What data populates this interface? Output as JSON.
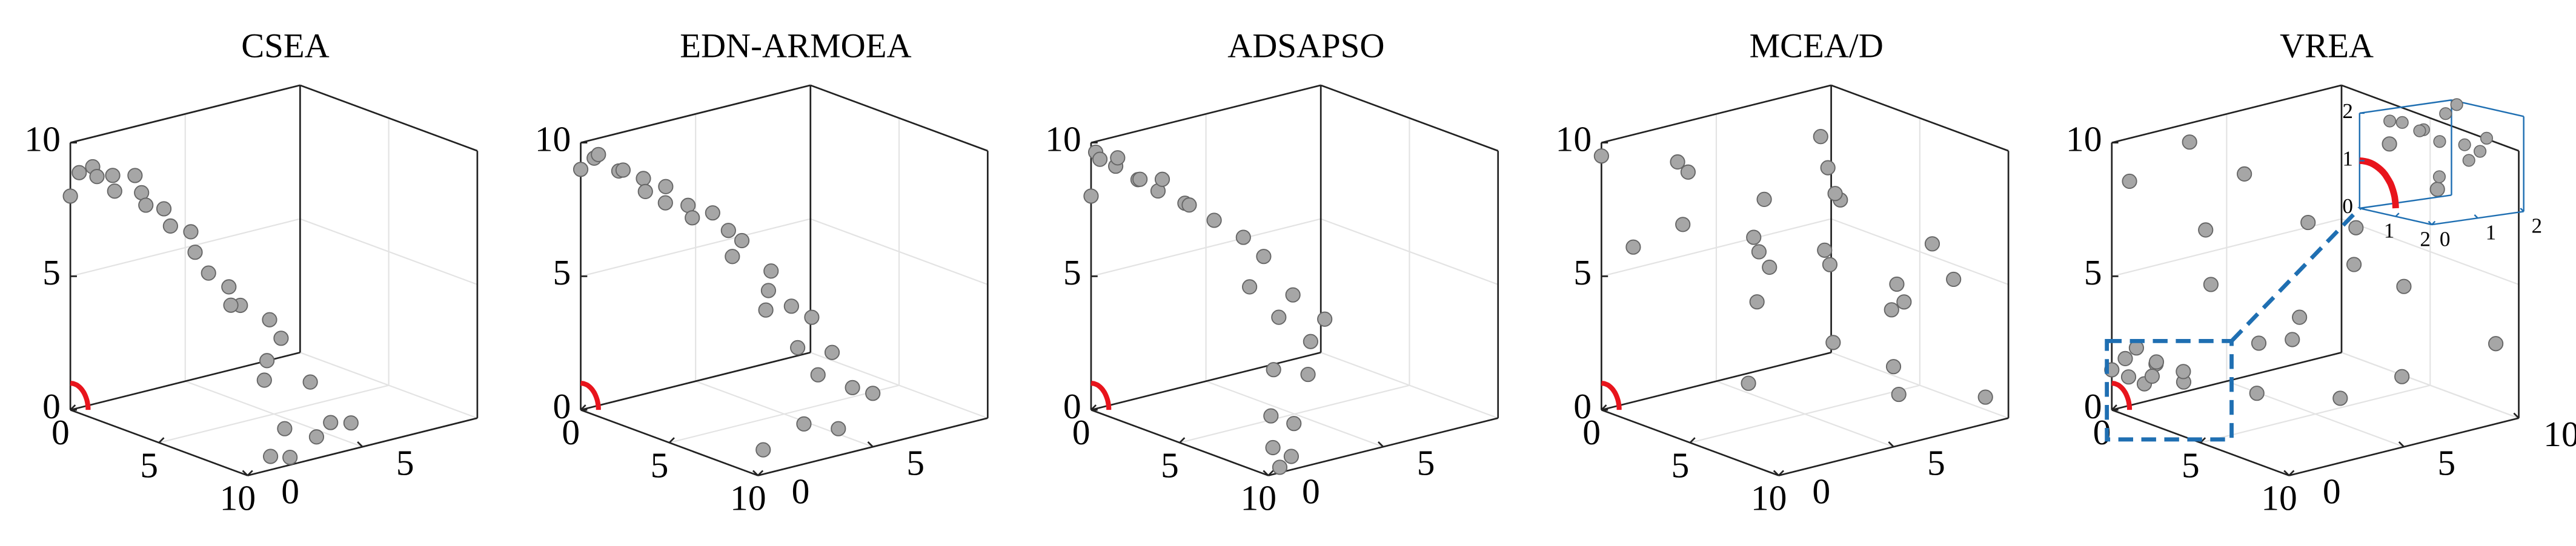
{
  "chart_data": [
    {
      "type": "scatter3d",
      "title": "CSEA",
      "color": "#a6a6a6",
      "xlim": [
        0,
        10
      ],
      "ylim": [
        0,
        10
      ],
      "zlim": [
        0,
        10
      ],
      "xticks": [
        0,
        5,
        10
      ],
      "yticks": [
        0,
        5
      ],
      "zticks": [
        0,
        5,
        10
      ],
      "grid": true,
      "x": [
        0,
        0.5,
        1,
        1.5,
        2,
        2.5,
        3,
        3.5,
        4,
        4.5,
        5,
        5.5,
        6,
        6.5,
        7,
        7,
        7.5,
        8,
        8,
        8.5,
        9,
        9,
        9.5,
        9.5,
        10,
        10,
        10,
        9.8
      ],
      "y": [
        0,
        0,
        0.2,
        0,
        0.3,
        0,
        0.5,
        0.4,
        0.2,
        0.6,
        0.5,
        1,
        0.8,
        1,
        1.5,
        2,
        1.2,
        2.5,
        3,
        2,
        1.5,
        3.5,
        2,
        4,
        1,
        3,
        4.5,
        2
      ],
      "z": [
        8,
        9,
        9.3,
        9.1,
        9.2,
        8.8,
        9.4,
        8.9,
        8.6,
        8.5,
        8,
        7.8,
        7.2,
        6.5,
        6,
        5.2,
        5.5,
        4.8,
        4,
        3.5,
        3,
        2.5,
        1.2,
        1,
        0.5,
        0.8,
        1,
        0.2
      ]
    },
    {
      "type": "scatter3d",
      "title": "EDN-ARMOEA",
      "color": "#a6a6a6",
      "xlim": [
        0,
        10
      ],
      "ylim": [
        0,
        10
      ],
      "zlim": [
        0,
        10
      ],
      "xticks": [
        0,
        5,
        10
      ],
      "yticks": [
        0,
        5
      ],
      "zticks": [
        0,
        5,
        10
      ],
      "grid": true,
      "x": [
        0,
        0.5,
        1,
        1.5,
        2,
        2.5,
        3,
        3.5,
        4,
        4.5,
        5,
        5.5,
        6,
        6.5,
        7,
        7.5,
        8,
        8,
        8.5,
        9,
        9,
        9.5,
        9.5,
        10,
        10,
        10,
        9,
        8.5
      ],
      "y": [
        0,
        0.2,
        0,
        0.5,
        0.3,
        0.8,
        0.5,
        1,
        0.6,
        1.2,
        1,
        1.5,
        1.8,
        2,
        1.2,
        2.5,
        2,
        3,
        3.5,
        2.5,
        4,
        3,
        4.5,
        2,
        3.5,
        5,
        1,
        1.5
      ],
      "z": [
        9,
        9.5,
        9.8,
        9.2,
        9.4,
        9.1,
        8.8,
        9,
        8.6,
        8.5,
        8.2,
        8.4,
        7.8,
        7.5,
        7.2,
        6.5,
        6,
        5.2,
        4.8,
        4,
        3.5,
        3,
        2.2,
        1.5,
        1,
        2,
        0.5,
        5.5
      ]
    },
    {
      "type": "scatter3d",
      "title": "ADSAPSO",
      "color": "#a6a6a6",
      "xlim": [
        0,
        10
      ],
      "ylim": [
        0,
        10
      ],
      "zlim": [
        0,
        10
      ],
      "xticks": [
        0,
        5,
        10
      ],
      "yticks": [
        0,
        5
      ],
      "zticks": [
        0,
        5,
        10
      ],
      "grid": true,
      "x": [
        0,
        0,
        0.5,
        1,
        1.5,
        2,
        2.5,
        3,
        3.5,
        4,
        4.5,
        5,
        6,
        6.5,
        7,
        7.5,
        8,
        8,
        8.5,
        9,
        9,
        9.5,
        9.5,
        10,
        10,
        10
      ],
      "y": [
        0,
        0.2,
        0,
        0.3,
        0,
        0.5,
        0.2,
        0.6,
        0.4,
        1,
        0.8,
        1.5,
        2,
        2.5,
        1.5,
        3,
        2,
        4,
        3,
        1,
        2.5,
        0.5,
        1.5,
        0.2,
        1,
        0.5
      ],
      "z": [
        8,
        9.6,
        9.5,
        9.3,
        9.8,
        9,
        9.2,
        8.8,
        9.4,
        8.5,
        8.6,
        8,
        7.5,
        6.8,
        6,
        5.5,
        5,
        4.5,
        4,
        3.5,
        3,
        2,
        1.5,
        1,
        0.5,
        0.2
      ]
    },
    {
      "type": "scatter3d",
      "title": "MCEA/D",
      "color": "#a6a6a6",
      "xlim": [
        0,
        10
      ],
      "ylim": [
        0,
        10
      ],
      "zlim": [
        0,
        10
      ],
      "xticks": [
        0,
        5,
        10
      ],
      "yticks": [
        0,
        5
      ],
      "zticks": [
        0,
        5,
        10
      ],
      "grid": true,
      "x": [
        0,
        0.5,
        1,
        1,
        2,
        2,
        3,
        3,
        4,
        4,
        5,
        5,
        5,
        6,
        6,
        7,
        7,
        7,
        8,
        8,
        9,
        9,
        9.5,
        10,
        10,
        10
      ],
      "y": [
        0,
        1,
        3,
        6,
        2,
        8,
        5,
        1,
        7,
        4,
        9,
        3,
        6,
        2,
        8,
        5,
        1,
        9,
        4,
        7,
        3,
        6,
        8,
        2,
        5,
        9
      ],
      "z": [
        9.5,
        6,
        8.5,
        3,
        7,
        9,
        5,
        9.8,
        2,
        8,
        4,
        6.5,
        9,
        7.5,
        3.5,
        8.5,
        2.5,
        6,
        9.2,
        4.5,
        7,
        1.5,
        5.5,
        8,
        3,
        1
      ]
    },
    {
      "type": "scatter3d",
      "title": "VREA",
      "color": "#a6a6a6",
      "xlim": [
        0,
        10
      ],
      "ylim": [
        0,
        10
      ],
      "zlim": [
        0,
        10
      ],
      "xticks": [
        0,
        5,
        10
      ],
      "yticks": [
        0,
        5,
        10
      ],
      "zticks": [
        0,
        5,
        10
      ],
      "grid": true,
      "x": [
        0,
        0.3,
        0.5,
        0.8,
        1,
        1.2,
        1.5,
        2,
        2.5,
        3,
        0.5,
        1,
        2,
        3,
        4,
        5,
        6,
        7,
        8,
        9,
        10,
        2,
        4,
        6,
        8,
        10,
        1,
        3
      ],
      "y": [
        0,
        0.5,
        0.2,
        0.8,
        0.3,
        1,
        0.6,
        0.4,
        1.2,
        0.8,
        3,
        5,
        7,
        2,
        9,
        4,
        6,
        1,
        8,
        3,
        5,
        9,
        1,
        8,
        2,
        9,
        0,
        4
      ],
      "z": [
        1.5,
        1.2,
        2,
        1,
        2.5,
        1.8,
        1.5,
        2.2,
        1.4,
        2,
        9.5,
        8,
        6,
        5,
        9,
        3,
        7,
        4,
        8.5,
        2,
        6,
        4,
        7.5,
        1,
        5,
        3,
        8.8,
        0.5
      ],
      "inset": {
        "color": "#1f6fb2",
        "xlim": [
          0,
          2
        ],
        "ylim": [
          0,
          2
        ],
        "zlim": [
          0,
          2
        ],
        "xticks": [
          1,
          2
        ],
        "yticks": [
          0,
          1,
          2
        ],
        "zticks": [
          0,
          1,
          2
        ],
        "x": [
          0.2,
          0.5,
          0.8,
          1,
          1.2,
          1.5,
          0.4,
          0.9,
          1.3,
          1.7,
          0.6,
          1.1
        ],
        "y": [
          0.5,
          1,
          0.3,
          1.5,
          0.8,
          1.2,
          1.8,
          0.6,
          1.6,
          0.4,
          1.4,
          1.9
        ],
        "z": [
          1.8,
          1.6,
          1.9,
          1.3,
          1.5,
          1.1,
          2,
          1.7,
          1.2,
          0.9,
          1.9,
          1.4
        ]
      }
    }
  ]
}
